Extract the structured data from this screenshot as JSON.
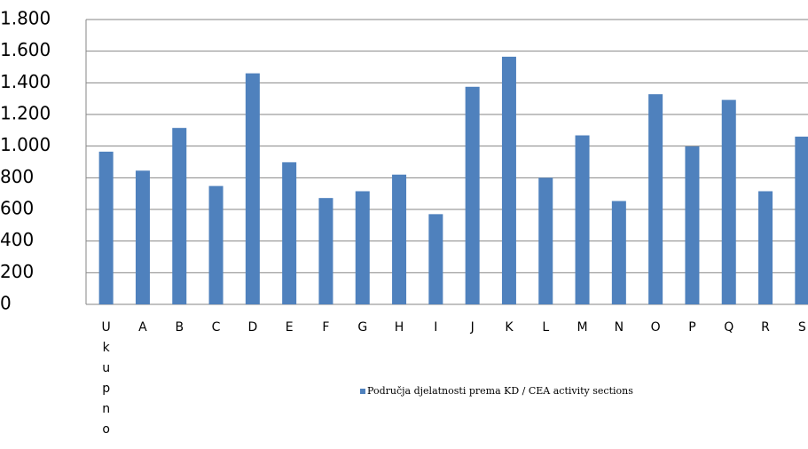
{
  "chart_data": {
    "type": "bar",
    "categories": [
      "Ukupno",
      "A",
      "B",
      "C",
      "D",
      "E",
      "F",
      "G",
      "H",
      "I",
      "J",
      "K",
      "L",
      "M",
      "N",
      "O",
      "P",
      "Q",
      "R",
      "S"
    ],
    "series": [
      {
        "name": "Područja djelatnosti prema KD / CEA activity sections",
        "color": "#4f81bd",
        "values": [
          965,
          845,
          1115,
          748,
          1460,
          898,
          672,
          715,
          820,
          570,
          1375,
          1565,
          800,
          1068,
          653,
          1328,
          998,
          1292,
          715,
          1060
        ]
      }
    ],
    "ylim": [
      0,
      1800
    ],
    "yticks": [
      0,
      200,
      400,
      600,
      800,
      {
        "value": 1000,
        "label": "1.000"
      },
      {
        "value": 1200,
        "label": "1.200"
      },
      {
        "value": 1400,
        "label": "1.400"
      },
      {
        "value": 1600,
        "label": "1.600"
      },
      {
        "value": 1800,
        "label": "1.800"
      }
    ],
    "grid": true,
    "legend": "bottom"
  }
}
